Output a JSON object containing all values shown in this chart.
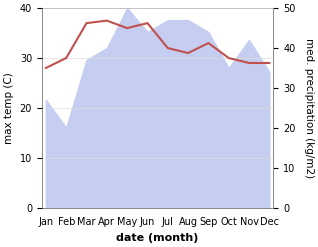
{
  "months": [
    "Jan",
    "Feb",
    "Mar",
    "Apr",
    "May",
    "Jun",
    "Jul",
    "Aug",
    "Sep",
    "Oct",
    "Nov",
    "Dec"
  ],
  "x": [
    0,
    1,
    2,
    3,
    4,
    5,
    6,
    7,
    8,
    9,
    10,
    11
  ],
  "max_temp": [
    28,
    30,
    37,
    37.5,
    36,
    37,
    32,
    31,
    33,
    30,
    29,
    29
  ],
  "temp_color": "#c0504d",
  "precip_fill_color": "#c5cdf0",
  "temp_ylim": [
    0,
    40
  ],
  "precip_ylim": [
    0,
    50
  ],
  "xlabel": "date (month)",
  "ylabel_left": "max temp (C)",
  "ylabel_right": "med. precipitation (kg/m2)",
  "bg_color": "#ffffff",
  "label_fontsize": 8,
  "tick_fontsize": 7,
  "axis_color": "#888888"
}
